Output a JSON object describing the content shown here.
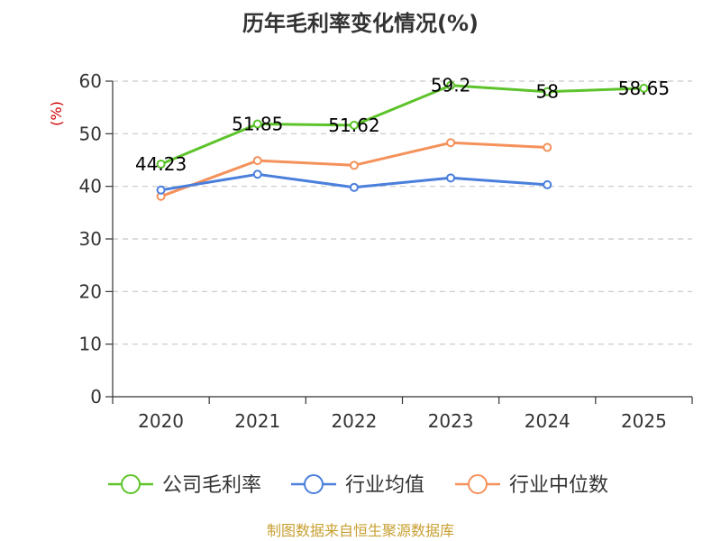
{
  "chart_data": {
    "type": "line",
    "title": "历年毛利率变化情况(%)",
    "ylabel": "(%)",
    "xlabel": "",
    "categories": [
      "2020",
      "2021",
      "2022",
      "2023",
      "2024",
      "2025"
    ],
    "ylim": [
      0,
      60
    ],
    "yticks": [
      0,
      10,
      20,
      30,
      40,
      50,
      60
    ],
    "grid": true,
    "legend_position": "bottom",
    "series": [
      {
        "name": "公司毛利率",
        "color": "#5dc32b",
        "values": [
          44.23,
          51.85,
          51.62,
          59.2,
          58,
          58.65
        ],
        "labels": [
          "44.23",
          "51.85",
          "51.62",
          "59.2",
          "58",
          "58.65"
        ]
      },
      {
        "name": "行业均值",
        "color": "#4a7fdc",
        "values": [
          39.3,
          42.3,
          39.8,
          41.6,
          40.3,
          null
        ]
      },
      {
        "name": "行业中位数",
        "color": "#f5915a",
        "values": [
          38.1,
          44.9,
          44.0,
          48.3,
          47.4,
          null
        ]
      }
    ],
    "source": "制图数据来自恒生聚源数据库"
  }
}
